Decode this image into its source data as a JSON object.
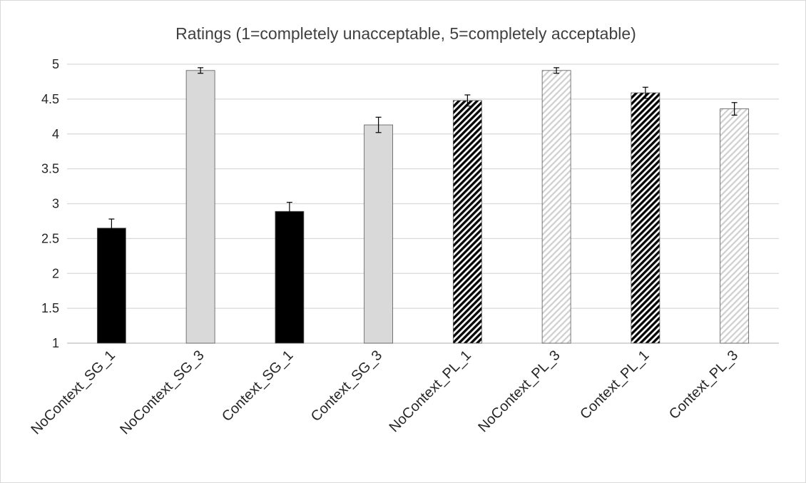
{
  "chart_data": {
    "type": "bar",
    "title": "Ratings (1=completely unacceptable, 5=completely acceptable)",
    "xlabel": "",
    "ylabel": "",
    "ylim": [
      1,
      5
    ],
    "yticks": [
      1,
      1.5,
      2,
      2.5,
      3,
      3.5,
      4,
      4.5,
      5
    ],
    "ytick_labels": [
      "1",
      "1.5",
      "2",
      "2.5",
      "3",
      "3.5",
      "4",
      "4.5",
      "5"
    ],
    "grid": true,
    "legend": "none",
    "categories": [
      "NoContext_SG_1",
      "NoContext_SG_3",
      "Context_SG_1",
      "Context_SG_3",
      "NoContext_PL_1",
      "NoContext_PL_3",
      "Context_PL_1",
      "Context_PL_3"
    ],
    "values": [
      2.65,
      4.91,
      2.89,
      4.13,
      4.48,
      4.91,
      4.59,
      4.36
    ],
    "errors": [
      0.13,
      0.04,
      0.13,
      0.11,
      0.08,
      0.04,
      0.08,
      0.09
    ],
    "fills": [
      "solid-black",
      "solid-light-gray",
      "solid-black",
      "solid-light-gray",
      "dark-diagonal-hatch",
      "light-diagonal-hatch",
      "dark-diagonal-hatch",
      "light-diagonal-hatch"
    ],
    "colors": {
      "black": "#000000",
      "light_gray": "#d9d9d9",
      "grid": "#d9d9d9",
      "outline": "#595959"
    }
  }
}
